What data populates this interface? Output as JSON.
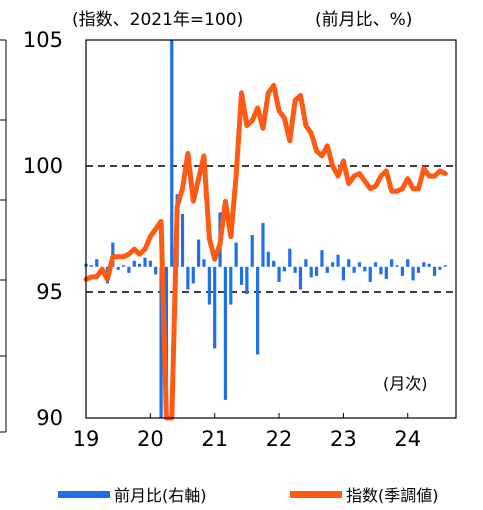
{
  "chart_data": {
    "type": "bar+line",
    "left_unit": "(指数、2021年=100)",
    "right_unit": "(前月比、%)",
    "left_axis": {
      "ylim": [
        90,
        105
      ],
      "ticks": [
        "90",
        "95",
        "100",
        "105"
      ]
    },
    "right_axis": {
      "ylim": [
        -10,
        15
      ],
      "ticks": [
        "-10",
        "-5",
        "0",
        "5",
        "10",
        "15"
      ]
    },
    "x_ticks": [
      "19",
      "20",
      "21",
      "22",
      "23",
      "24"
    ],
    "x_range": [
      2019.0,
      2024.75
    ],
    "x_note": "(月次)",
    "reference_lines": [
      100,
      95
    ],
    "grid": false,
    "legend_position": "bottom",
    "colors": {
      "index": "#ff5a14",
      "mom": "#1f6fe5"
    },
    "series": [
      {
        "name": "前月比(右軸)",
        "kind": "bar",
        "axis": "right",
        "x": [
          2019.0,
          2019.083,
          2019.167,
          2019.25,
          2019.333,
          2019.417,
          2019.5,
          2019.583,
          2019.667,
          2019.75,
          2019.833,
          2019.917,
          2020.0,
          2020.083,
          2020.167,
          2020.25,
          2020.333,
          2020.417,
          2020.5,
          2020.583,
          2020.667,
          2020.75,
          2020.833,
          2020.917,
          2021.0,
          2021.083,
          2021.167,
          2021.25,
          2021.333,
          2021.417,
          2021.5,
          2021.583,
          2021.667,
          2021.75,
          2021.833,
          2021.917,
          2022.0,
          2022.083,
          2022.167,
          2022.25,
          2022.333,
          2022.417,
          2022.5,
          2022.583,
          2022.667,
          2022.75,
          2022.833,
          2022.917,
          2023.0,
          2023.083,
          2023.167,
          2023.25,
          2023.333,
          2023.417,
          2023.5,
          2023.583,
          2023.667,
          2023.75,
          2023.833,
          2023.917,
          2024.0,
          2024.083,
          2024.167,
          2024.25,
          2024.333,
          2024.417,
          2024.5,
          2024.583
        ],
        "values": [
          0.2,
          0.1,
          0.5,
          -0.3,
          -1.1,
          1.6,
          -0.2,
          0.1,
          -0.4,
          0.4,
          0.2,
          0.6,
          0.4,
          -0.5,
          -12.5,
          -9.2,
          15.0,
          4.8,
          3.5,
          -1.5,
          -1.1,
          1.8,
          0.5,
          -2.5,
          -5.4,
          3.6,
          -8.8,
          -2.5,
          1.6,
          -1.2,
          -1.8,
          2.1,
          -5.8,
          2.9,
          1.0,
          0.4,
          -1.0,
          -0.3,
          1.2,
          -0.4,
          -1.5,
          0.5,
          -0.7,
          -0.6,
          1.1,
          -0.4,
          0.3,
          0.8,
          -0.9,
          0.5,
          -0.4,
          0.3,
          -0.3,
          -1.0,
          0.3,
          -0.5,
          -0.8,
          0.5,
          0.1,
          -0.6,
          0.5,
          -0.9,
          -0.4,
          0.3,
          0.2,
          -0.6,
          -0.2,
          0.1
        ]
      },
      {
        "name": "指数(季調値)",
        "kind": "line",
        "axis": "left",
        "x": [
          2019.0,
          2019.083,
          2019.167,
          2019.25,
          2019.333,
          2019.417,
          2019.5,
          2019.583,
          2019.667,
          2019.75,
          2019.833,
          2019.917,
          2020.0,
          2020.083,
          2020.167,
          2020.25,
          2020.333,
          2020.417,
          2020.5,
          2020.583,
          2020.667,
          2020.75,
          2020.833,
          2020.917,
          2021.0,
          2021.083,
          2021.167,
          2021.25,
          2021.333,
          2021.417,
          2021.5,
          2021.583,
          2021.667,
          2021.75,
          2021.833,
          2021.917,
          2022.0,
          2022.083,
          2022.167,
          2022.25,
          2022.333,
          2022.417,
          2022.5,
          2022.583,
          2022.667,
          2022.75,
          2022.833,
          2022.917,
          2023.0,
          2023.083,
          2023.167,
          2023.25,
          2023.333,
          2023.417,
          2023.5,
          2023.583,
          2023.667,
          2023.75,
          2023.833,
          2023.917,
          2024.0,
          2024.083,
          2024.167,
          2024.25,
          2024.333,
          2024.417,
          2024.5,
          2024.583
        ],
        "values": [
          95.5,
          95.6,
          95.6,
          95.9,
          95.5,
          96.4,
          96.4,
          96.4,
          96.5,
          96.7,
          96.5,
          96.7,
          97.2,
          97.5,
          97.8,
          90.0,
          90.0,
          98.4,
          99.1,
          100.5,
          98.6,
          99.5,
          100.4,
          97.1,
          96.3,
          96.9,
          98.6,
          97.2,
          99.6,
          102.9,
          101.6,
          101.8,
          102.3,
          101.5,
          102.9,
          103.2,
          102.2,
          101.9,
          101.0,
          102.6,
          102.8,
          101.6,
          101.3,
          100.6,
          100.4,
          100.8,
          100.0,
          99.6,
          100.2,
          99.3,
          99.6,
          99.7,
          99.4,
          99.1,
          99.2,
          99.6,
          99.8,
          99.0,
          99.0,
          99.1,
          99.5,
          99.1,
          99.1,
          99.9,
          99.6,
          99.6,
          99.8,
          99.7
        ]
      }
    ]
  }
}
